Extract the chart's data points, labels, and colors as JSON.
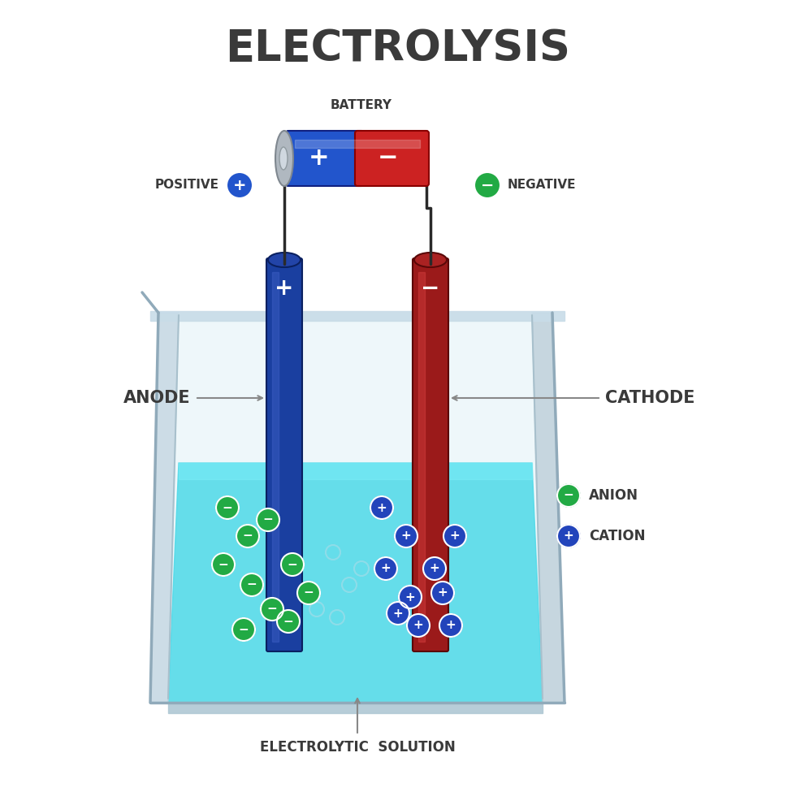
{
  "title": "ELECTROLYSIS",
  "title_color": "#3a3a3a",
  "title_fontsize": 38,
  "bg_color": "#ffffff",
  "battery_label": "BATTERY",
  "positive_label": "POSITIVE",
  "negative_label": "NEGATIVE",
  "anode_label": "ANODE",
  "cathode_label": "CATHODE",
  "electrolytic_label": "ELECTROLYTIC  SOLUTION",
  "anion_label": "ANION",
  "cation_label": "CATION",
  "beaker_fill": "#e8f4f8",
  "solution_color": "#4dd9e8",
  "anode_color_top": "#1a3fa0",
  "cathode_color_top": "#9b1a1a",
  "battery_blue": "#2255cc",
  "battery_red": "#cc2222",
  "battery_cap": "#b0b8c0",
  "wire_color": "#2a2a2a",
  "anion_color": "#22aa44",
  "cation_color": "#2244bb",
  "label_color": "#3a3a3a",
  "arrow_color": "#888888"
}
